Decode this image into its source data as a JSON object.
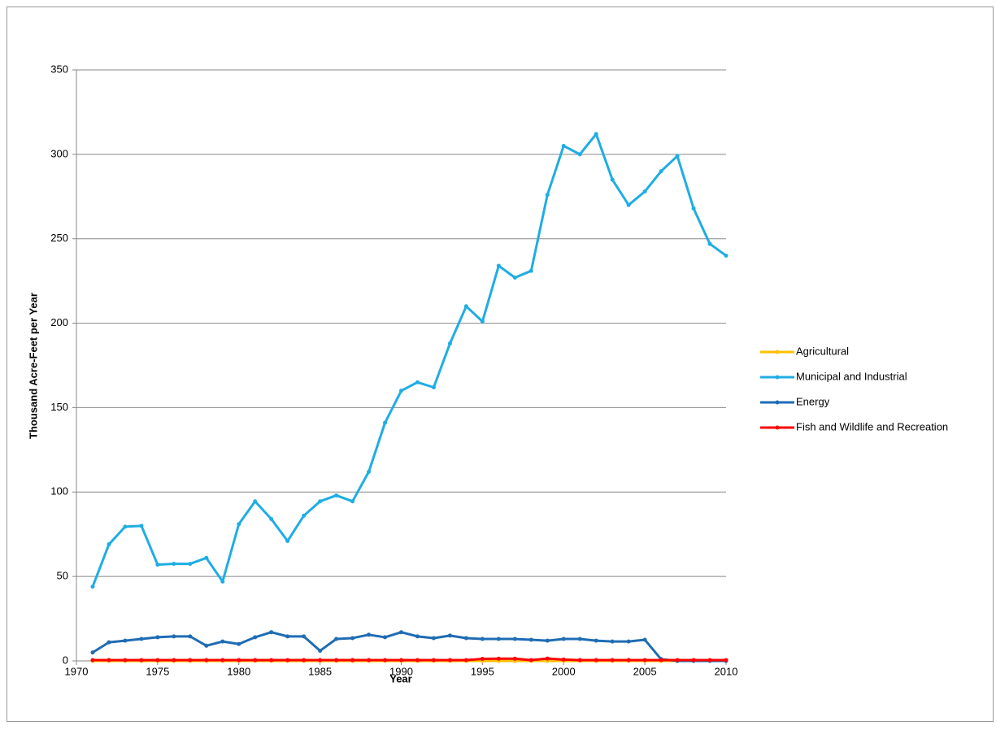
{
  "chart_data": {
    "type": "line",
    "x": [
      1971,
      1972,
      1973,
      1974,
      1975,
      1976,
      1977,
      1978,
      1979,
      1980,
      1981,
      1982,
      1983,
      1984,
      1985,
      1986,
      1987,
      1988,
      1989,
      1990,
      1991,
      1992,
      1993,
      1994,
      1995,
      1996,
      1997,
      1998,
      1999,
      2000,
      2001,
      2002,
      2003,
      2004,
      2005,
      2006,
      2007,
      2008,
      2009,
      2010
    ],
    "series": [
      {
        "name": "Agricultural",
        "color": "#ffc000",
        "values": [
          0,
          0,
          0,
          0,
          0,
          0,
          0,
          0,
          0,
          0,
          0,
          0,
          0,
          0,
          0,
          0,
          0,
          0,
          0,
          0,
          0,
          0,
          0,
          0,
          0,
          0,
          0,
          0,
          0,
          0,
          0,
          0,
          0,
          0,
          0,
          0,
          0,
          0,
          0,
          0
        ]
      },
      {
        "name": "Municipal and Industrial",
        "color": "#1fade4",
        "values": [
          44,
          69,
          79.5,
          80,
          57,
          57.5,
          57.5,
          61,
          47,
          81,
          94.5,
          84,
          71,
          86,
          94.5,
          98,
          94.5,
          112,
          141,
          160,
          165,
          162,
          188,
          210,
          201,
          234,
          227,
          231,
          276,
          305,
          300,
          312,
          285,
          270,
          278,
          290,
          299,
          268,
          247,
          240
        ]
      },
      {
        "name": "Energy",
        "color": "#1f6cb4",
        "values": [
          5,
          11,
          12,
          13,
          14,
          14.5,
          14.5,
          9,
          11.5,
          10,
          14,
          17,
          14.5,
          14.5,
          6,
          13,
          13.5,
          15.5,
          14,
          17,
          14.5,
          13.5,
          15,
          13.5,
          13,
          13,
          13,
          12.5,
          12,
          13,
          13,
          12,
          11.5,
          11.5,
          12.5,
          1,
          0,
          0,
          0,
          0
        ]
      },
      {
        "name": "Fish and Wildlife and Recreation",
        "color": "#ff0000",
        "values": [
          0.5,
          0.5,
          0.5,
          0.5,
          0.5,
          0.5,
          0.5,
          0.5,
          0.5,
          0.5,
          0.5,
          0.5,
          0.5,
          0.5,
          0.5,
          0.5,
          0.5,
          0.5,
          0.5,
          0.5,
          0.5,
          0.5,
          0.5,
          0.5,
          1.2,
          1.3,
          1.3,
          0.5,
          1.4,
          0.8,
          0.5,
          0.5,
          0.5,
          0.5,
          0.5,
          0.5,
          0.5,
          0.5,
          0.5,
          0.5
        ]
      }
    ],
    "xlabel": "Year",
    "ylabel": "Thousand Acre-Feet per Year",
    "xlim": [
      1970,
      2010
    ],
    "xticks": [
      1970,
      1975,
      1980,
      1985,
      1990,
      1995,
      2000,
      2005,
      2010
    ],
    "ylim": [
      0,
      350
    ],
    "yticks": [
      0,
      50,
      100,
      150,
      200,
      250,
      300,
      350
    ],
    "grid": true,
    "legend": "right"
  }
}
